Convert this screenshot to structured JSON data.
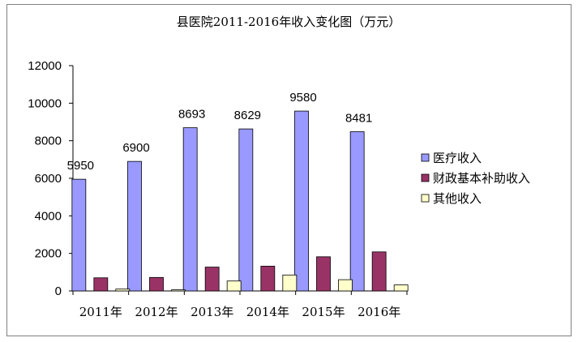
{
  "chart_data": {
    "type": "bar",
    "title": "县医院2011-2016年收入变化图（万元）",
    "xlabel": "",
    "ylabel": "",
    "categories": [
      "2011年",
      "2012年",
      "2013年",
      "2014年",
      "2015年",
      "2016年"
    ],
    "ylim": [
      0,
      12000
    ],
    "yticks": [
      0,
      2000,
      4000,
      6000,
      8000,
      10000,
      12000
    ],
    "grid": false,
    "legend_position": "right",
    "series": [
      {
        "name": "医疗收入",
        "color": "#9999ff",
        "values": [
          5950,
          6900,
          8693,
          8629,
          9580,
          8481
        ],
        "data_labels": [
          "5950",
          "6900",
          "8693",
          "8629",
          "9580",
          "8481"
        ]
      },
      {
        "name": "财政基本补助收入",
        "color": "#993366",
        "values": [
          700,
          720,
          1270,
          1320,
          1820,
          2080
        ]
      },
      {
        "name": "其他收入",
        "color": "#ffffcc",
        "values": [
          100,
          60,
          530,
          850,
          600,
          320
        ]
      }
    ]
  }
}
